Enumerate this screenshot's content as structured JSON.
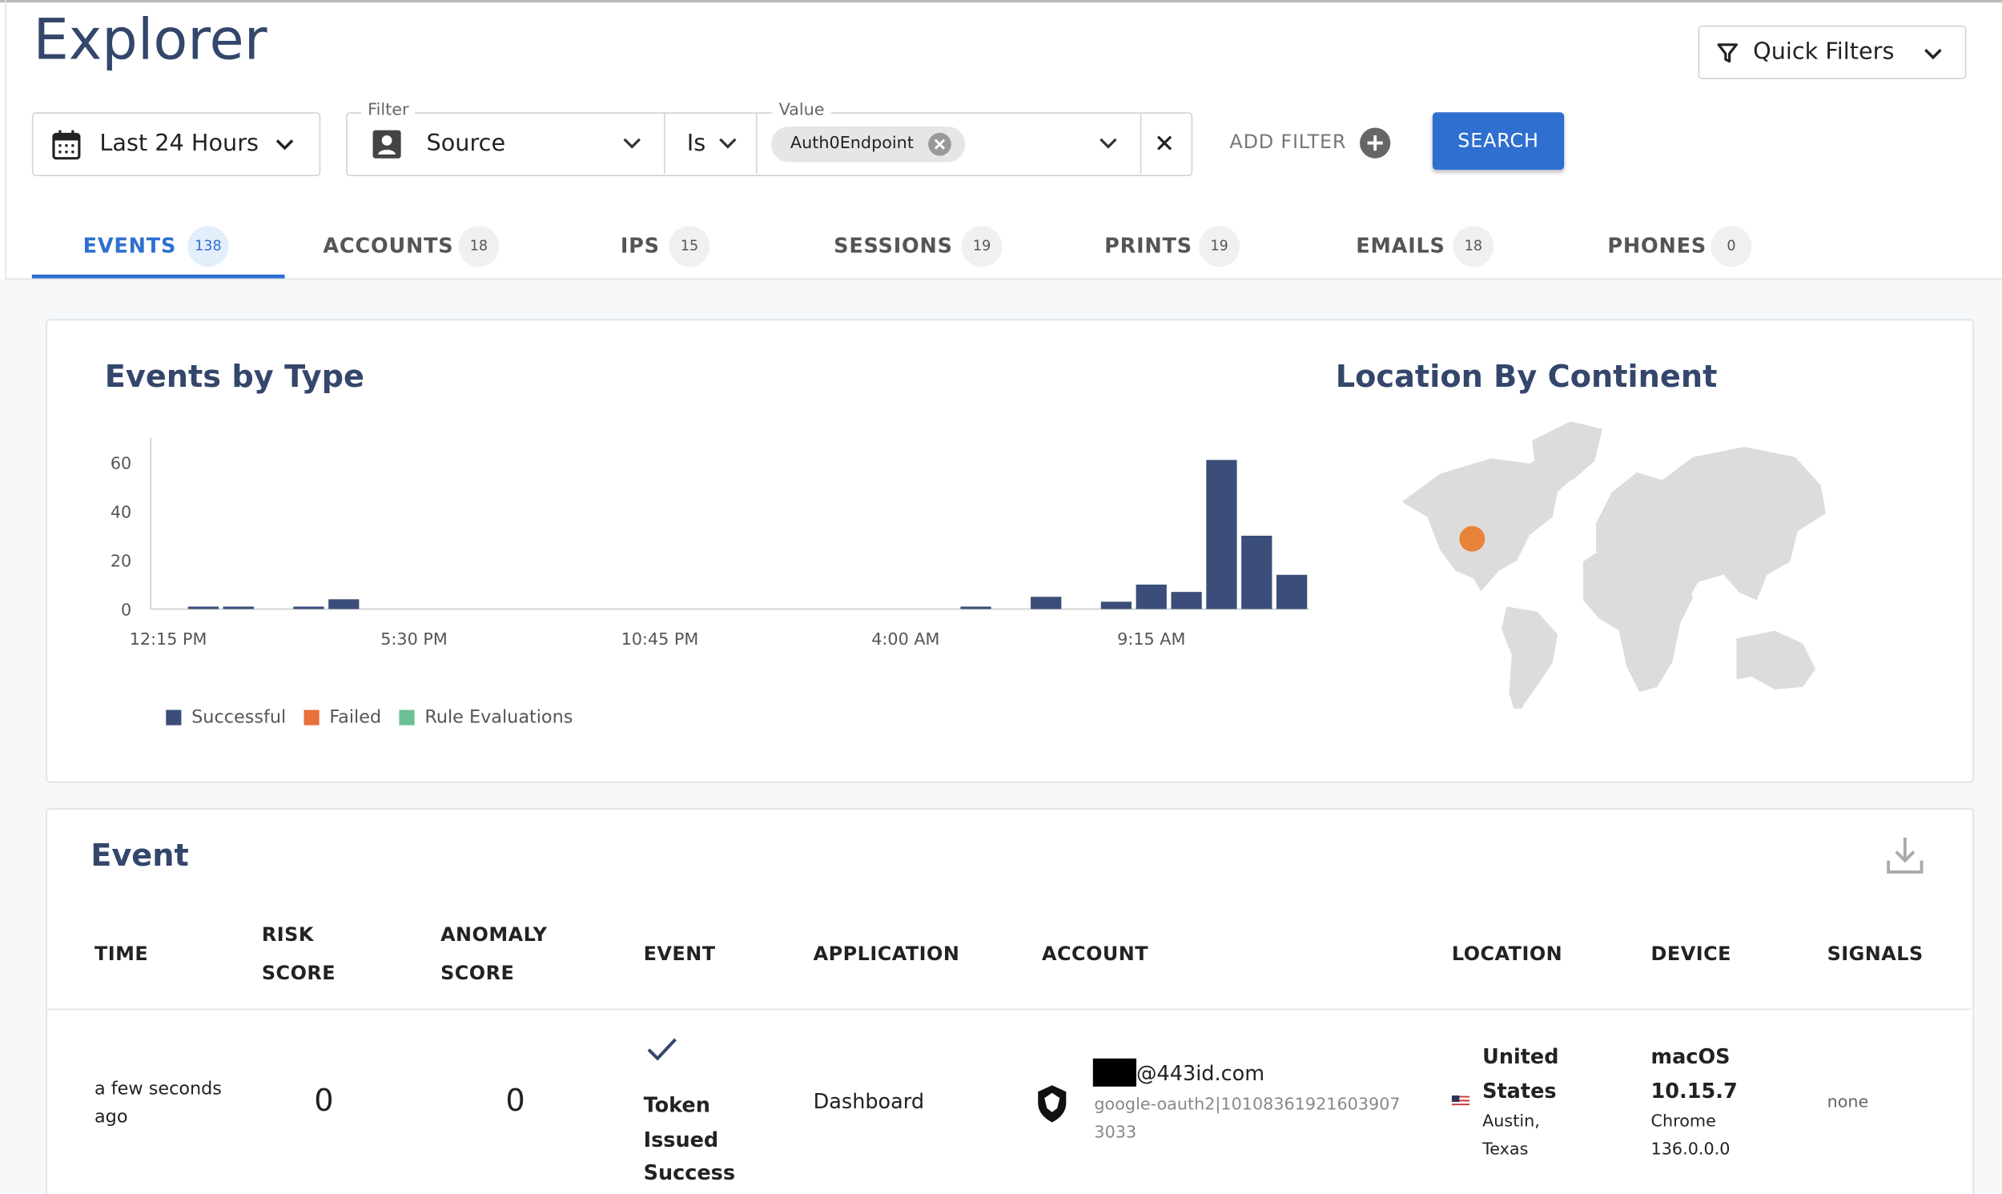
{
  "header": {
    "title": "Explorer",
    "quick_filters": "Quick Filters"
  },
  "filters": {
    "time_range": "Last 24 Hours",
    "filter_legend": "Filter",
    "filter_field": "Source",
    "operator": "Is",
    "value_legend": "Value",
    "value_chip": "Auth0Endpoint",
    "add_filter": "ADD FILTER",
    "search": "SEARCH"
  },
  "tabs": [
    {
      "label": "EVENTS",
      "count": "138"
    },
    {
      "label": "ACCOUNTS",
      "count": "18"
    },
    {
      "label": "IPS",
      "count": "15"
    },
    {
      "label": "SESSIONS",
      "count": "19"
    },
    {
      "label": "PRINTS",
      "count": "19"
    },
    {
      "label": "EMAILS",
      "count": "18"
    },
    {
      "label": "PHONES",
      "count": "0"
    }
  ],
  "events_by_type": {
    "title": "Events by Type",
    "chart_data": {
      "type": "bar",
      "stacked": true,
      "categories": [
        "12:15 PM",
        null,
        null,
        null,
        null,
        null,
        null,
        "5:30 PM",
        null,
        null,
        null,
        null,
        null,
        null,
        "10:45 PM",
        null,
        null,
        null,
        null,
        null,
        null,
        "4:00 AM",
        null,
        null,
        null,
        null,
        null,
        null,
        "9:15 AM",
        null,
        null,
        null,
        null
      ],
      "series": [
        {
          "name": "Successful",
          "color": "#3b4e7a",
          "values": [
            0,
            1,
            1,
            0,
            1,
            4,
            0,
            0,
            0,
            0,
            0,
            0,
            0,
            0,
            0,
            0,
            0,
            0,
            0,
            0,
            0,
            0,
            0,
            1,
            0,
            5,
            0,
            3,
            10,
            7,
            61,
            30,
            14
          ]
        },
        {
          "name": "Failed",
          "color": "#e8703a",
          "values": [
            0,
            0,
            0,
            0,
            0,
            0,
            0,
            0,
            0,
            0,
            0,
            0,
            0,
            0,
            0,
            0,
            0,
            0,
            0,
            0,
            0,
            0,
            0,
            0,
            0,
            0,
            0,
            0,
            0,
            0,
            0,
            0,
            0
          ]
        },
        {
          "name": "Rule Evaluations",
          "color": "#6dbf94",
          "values": [
            0,
            0,
            0,
            0,
            0,
            0,
            0,
            0,
            0,
            0,
            0,
            0,
            0,
            0,
            0,
            0,
            0,
            0,
            0,
            0,
            0,
            0,
            0,
            0,
            0,
            0,
            0,
            0,
            0,
            0,
            0,
            0,
            0
          ]
        }
      ],
      "ylim": [
        0,
        70
      ],
      "yticks": [
        0,
        20,
        40,
        60
      ],
      "grid": false,
      "legend": "bottom-left"
    }
  },
  "location_panel": {
    "title": "Location By Continent"
  },
  "event_table": {
    "title": "Event",
    "columns": [
      "TIME",
      "RISK SCORE",
      "ANOMALY SCORE",
      "EVENT",
      "APPLICATION",
      "ACCOUNT",
      "LOCATION",
      "DEVICE",
      "SIGNALS"
    ],
    "rows": [
      {
        "time": "a few seconds ago",
        "risk_score": "0",
        "anomaly_score": "0",
        "event": "Token Issued Success",
        "application": "Dashboard",
        "account_email": "@443id.com",
        "account_id": "google-oauth2|101083619216039073033",
        "country": "United States",
        "city": "Austin, Texas",
        "os": "macOS 10.15.7",
        "browser": "Chrome 136.0.0.0",
        "signals": "none"
      }
    ]
  }
}
